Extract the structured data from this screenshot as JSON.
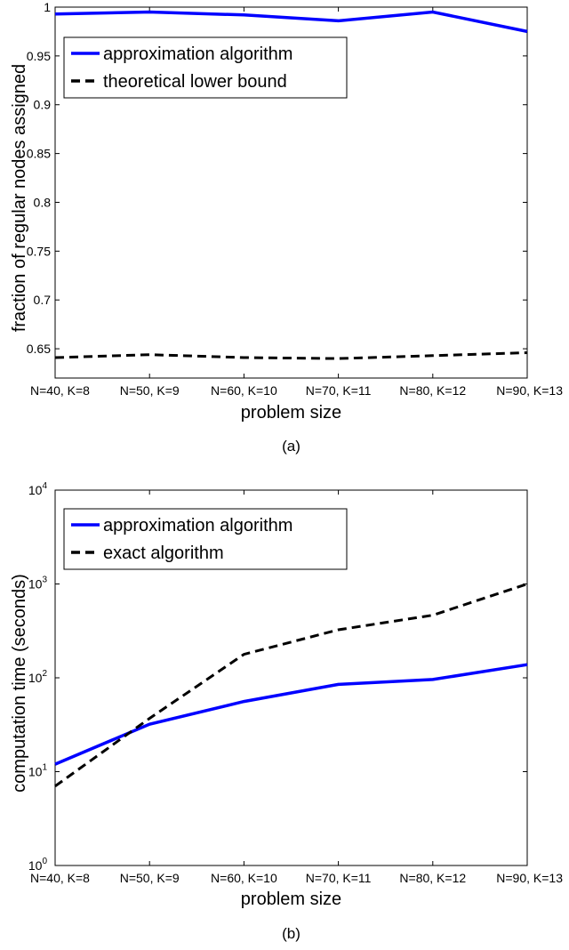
{
  "chart_data": [
    {
      "type": "line",
      "caption": "(a)",
      "xlabel": "problem size",
      "ylabel": "fraction of regular nodes assigned",
      "categories": [
        "N=40, K=8",
        "N=50, K=9",
        "N=60, K=10",
        "N=70, K=11",
        "N=80, K=12",
        "N=90, K=13"
      ],
      "ylim": [
        0.62,
        1.0
      ],
      "yscale": "linear",
      "yticks": [
        0.65,
        0.7,
        0.75,
        0.8,
        0.85,
        0.9,
        0.95,
        1
      ],
      "yticklabels": [
        "0.65",
        "0.7",
        "0.75",
        "0.8",
        "0.85",
        "0.9",
        "0.95",
        "1"
      ],
      "legend_position": "top-left",
      "grid": false,
      "series": [
        {
          "name": "approximation algorithm",
          "color": "#0000ff",
          "style": "solid",
          "values": [
            0.993,
            0.995,
            0.992,
            0.986,
            0.995,
            0.975
          ]
        },
        {
          "name": "theoretical lower bound",
          "color": "#000000",
          "style": "dashed",
          "values": [
            0.641,
            0.644,
            0.641,
            0.64,
            0.643,
            0.646
          ]
        }
      ]
    },
    {
      "type": "line",
      "caption": "(b)",
      "xlabel": "problem size",
      "ylabel": "computation time (seconds)",
      "categories": [
        "N=40, K=8",
        "N=50, K=9",
        "N=60, K=10",
        "N=70, K=11",
        "N=80, K=12",
        "N=90, K=13"
      ],
      "ylim": [
        1,
        10000
      ],
      "yscale": "log",
      "yticks": [
        1,
        10,
        100,
        1000,
        10000
      ],
      "yticklabels": [
        {
          "base": "10",
          "exp": "0"
        },
        {
          "base": "10",
          "exp": "1"
        },
        {
          "base": "10",
          "exp": "2"
        },
        {
          "base": "10",
          "exp": "3"
        },
        {
          "base": "10",
          "exp": "4"
        }
      ],
      "legend_position": "top-left",
      "grid": false,
      "series": [
        {
          "name": "approximation algorithm",
          "color": "#0000ff",
          "style": "solid",
          "values": [
            12,
            32,
            56,
            85,
            96,
            138
          ]
        },
        {
          "name": "exact algorithm",
          "color": "#000000",
          "style": "dashed",
          "values": [
            7,
            37,
            178,
            325,
            465,
            1000
          ]
        }
      ]
    }
  ]
}
